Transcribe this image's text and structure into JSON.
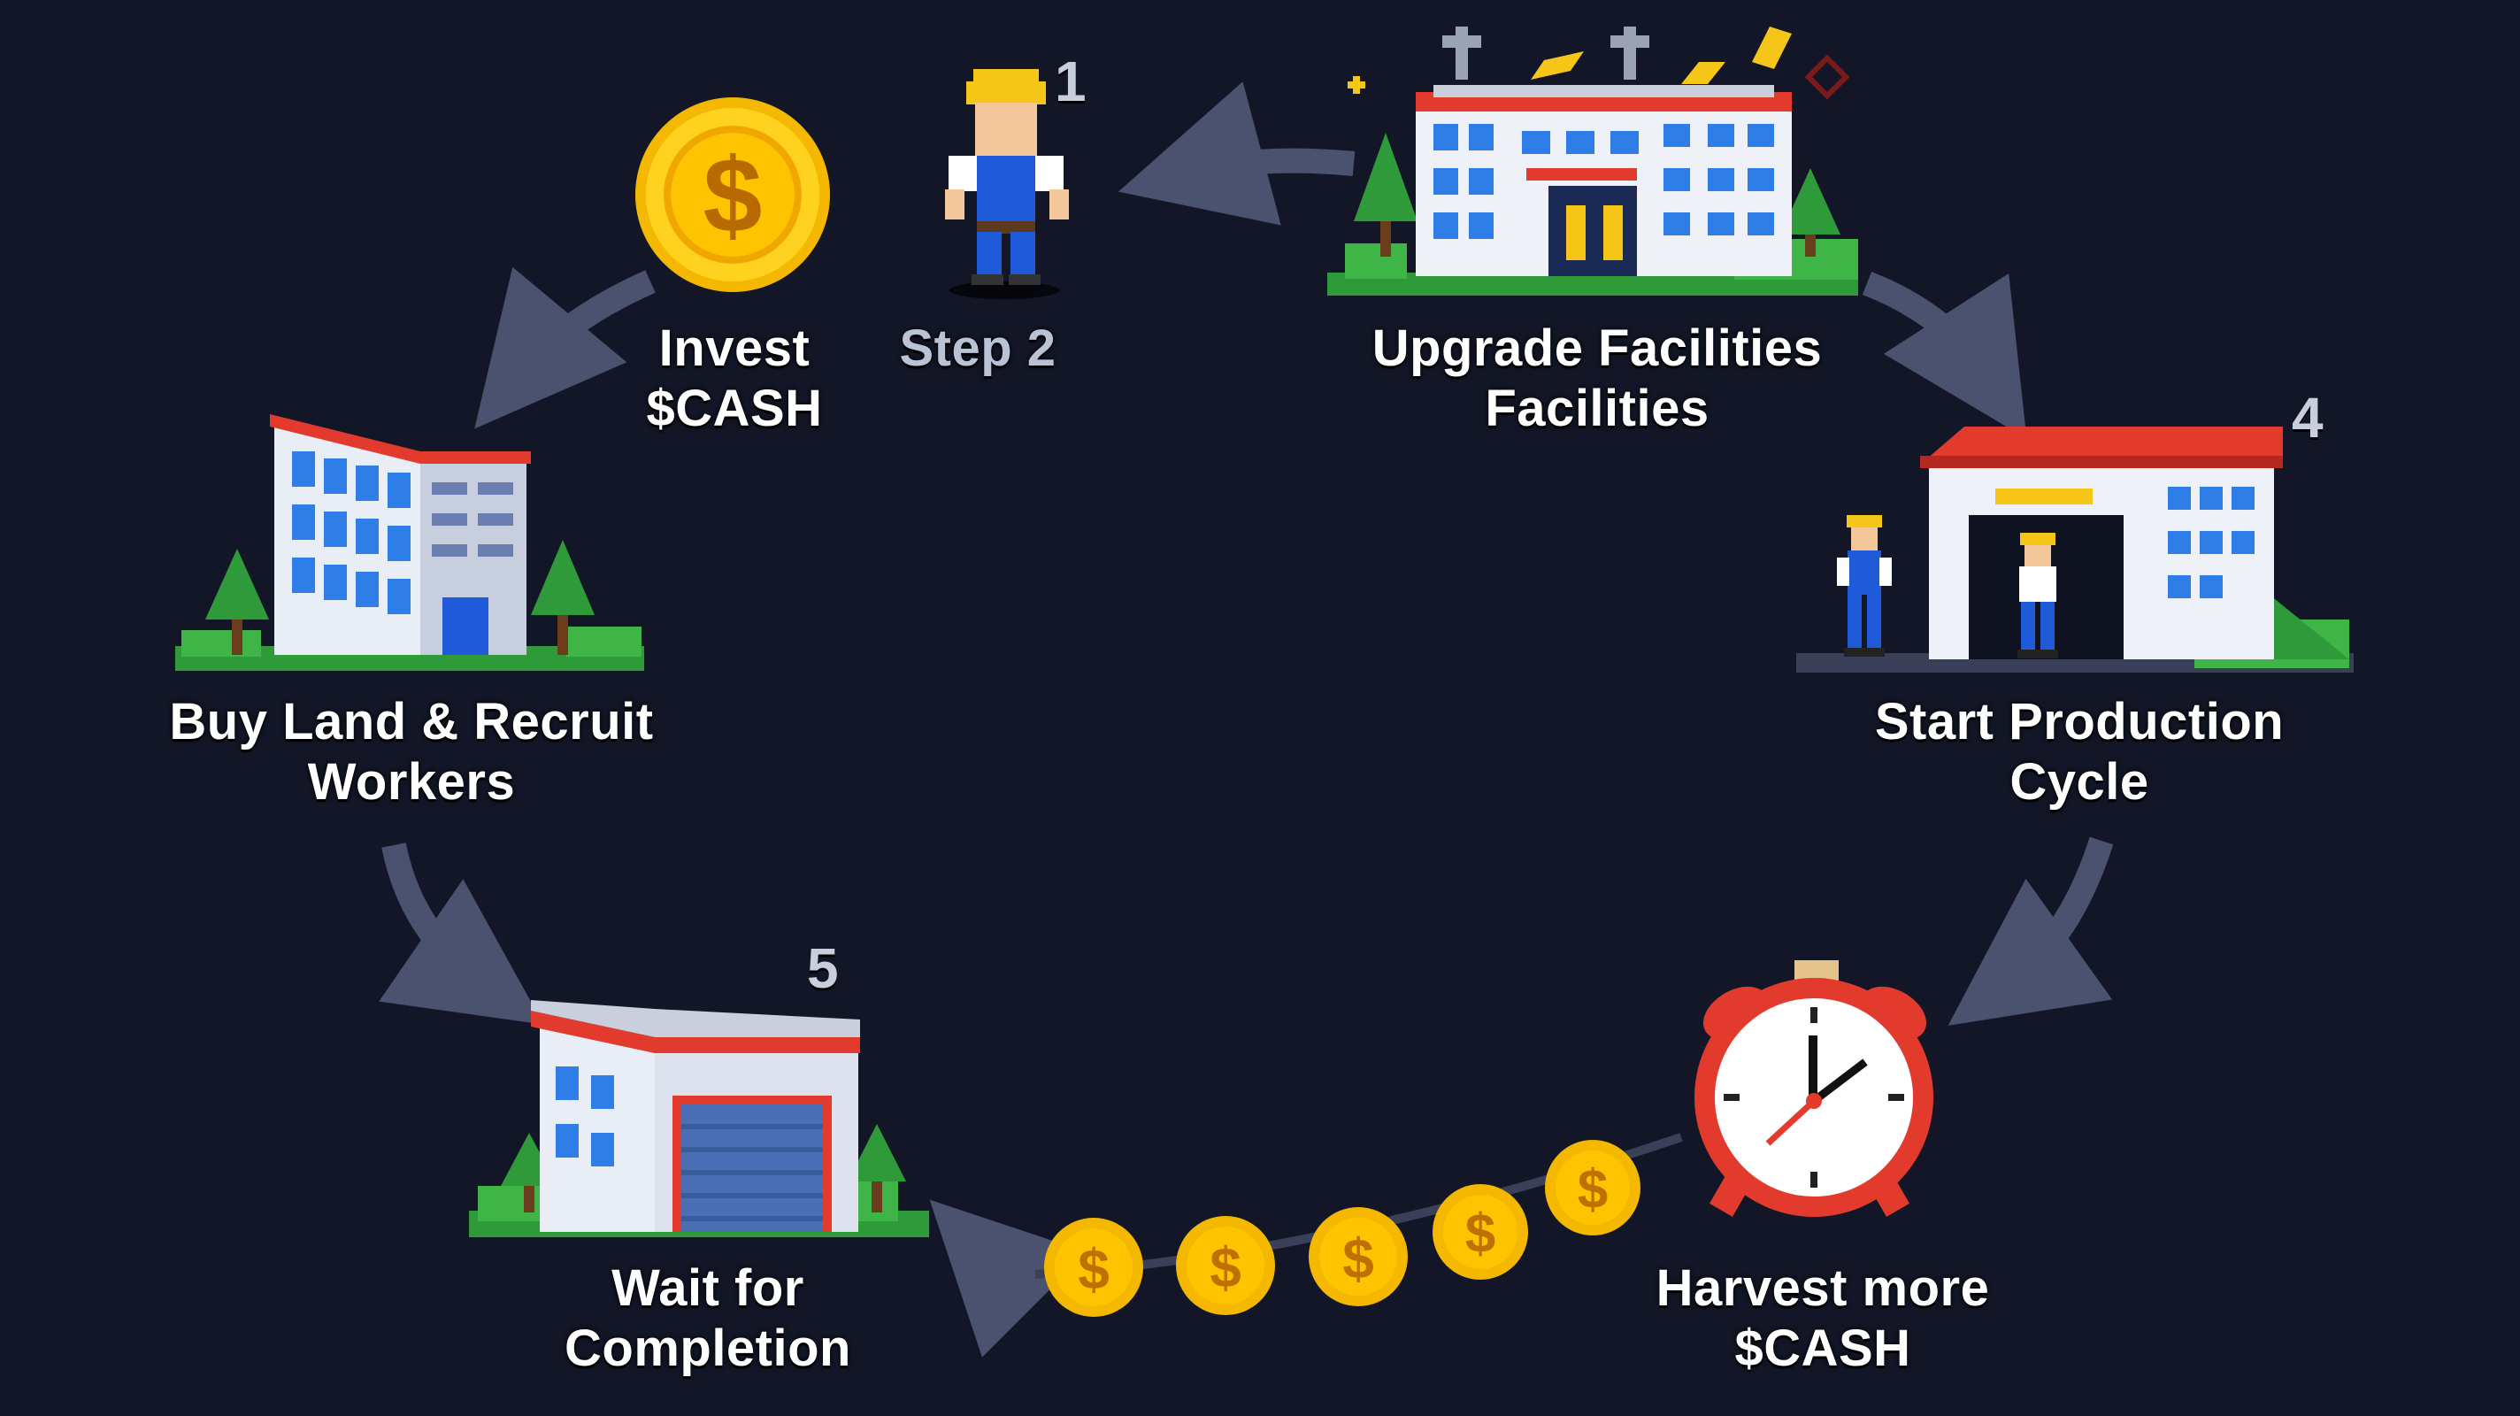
{
  "colors": {
    "background": "#121626",
    "arrow": "#4a5270",
    "coin": "#f5c518",
    "roof": "#e23b2e",
    "building": "#eef1f8",
    "window": "#2f7ee8",
    "tree": "#2f9a3a"
  },
  "steps": [
    {
      "id": "invest",
      "lines": [
        "Invest",
        "$CASH"
      ],
      "icon": "coin-icon"
    },
    {
      "id": "step2",
      "lines": [
        "Step 2"
      ],
      "number": "1",
      "icon": "worker-icon"
    },
    {
      "id": "upgrade",
      "lines": [
        "Upgrade Facilities",
        "Facilities"
      ],
      "icon": "factory-icon"
    },
    {
      "id": "production",
      "lines": [
        "Start Production",
        "Cycle"
      ],
      "number": "4",
      "icon": "warehouse-icon"
    },
    {
      "id": "harvest",
      "lines": [
        "Harvest more",
        "$CASH"
      ],
      "icon": "alarm-clock-icon"
    },
    {
      "id": "wait",
      "lines": [
        "Wait for",
        "Completion"
      ],
      "number": "5",
      "icon": "garage-icon"
    },
    {
      "id": "buyland",
      "lines": [
        "Buy Land & Recruit",
        "Workers"
      ],
      "icon": "office-building-icon"
    }
  ]
}
